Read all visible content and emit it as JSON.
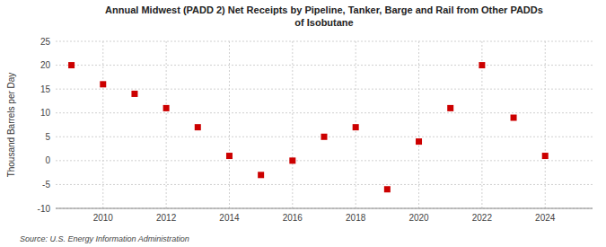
{
  "chart_data": {
    "type": "scatter",
    "title": "Annual Midwest (PADD 2) Net Receipts by Pipeline, Tanker, Barge and Rail from Other PADDs\nof Isobutane",
    "y_label": "Thousand Barrels per Day",
    "annotations": [
      "Source: U.S. Energy Information Administration"
    ],
    "x": [
      2009,
      2010,
      2011,
      2012,
      2013,
      2014,
      2015,
      2016,
      2017,
      2018,
      2019,
      2020,
      2021,
      2022,
      2023,
      2024
    ],
    "values": [
      20,
      16,
      14,
      11,
      7,
      1,
      -3,
      0,
      5,
      7,
      -6,
      4,
      11,
      20,
      9,
      1
    ],
    "color": "#cc0000",
    "marker": "square",
    "xlim": [
      2008.5,
      2025.5
    ],
    "xticks": [
      2010,
      2012,
      2014,
      2016,
      2018,
      2020,
      2022,
      2024
    ],
    "ylim": [
      -10,
      25
    ],
    "yticks": [
      -10,
      -5,
      0,
      5,
      10,
      15,
      20,
      25
    ],
    "grid": true
  }
}
